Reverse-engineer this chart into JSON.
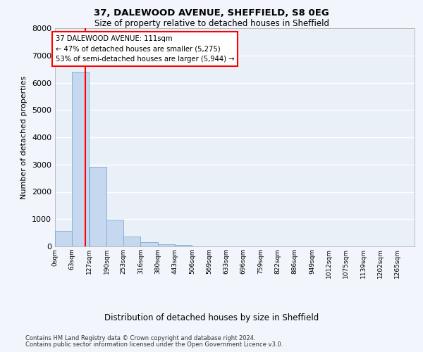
{
  "title1": "37, DALEWOOD AVENUE, SHEFFIELD, S8 0EG",
  "title2": "Size of property relative to detached houses in Sheffield",
  "xlabel": "Distribution of detached houses by size in Sheffield",
  "ylabel": "Number of detached properties",
  "annotation_line1": "37 DALEWOOD AVENUE: 111sqm",
  "annotation_line2": "← 47% of detached houses are smaller (5,275)",
  "annotation_line3": "53% of semi-detached houses are larger (5,944) →",
  "bar_values": [
    575,
    6400,
    2920,
    970,
    370,
    155,
    80,
    55,
    0,
    0,
    0,
    0,
    0,
    0,
    0,
    0,
    0,
    0,
    0,
    0
  ],
  "bin_edges": [
    0,
    63,
    127,
    190,
    253,
    316,
    380,
    443,
    506,
    569,
    633,
    696,
    759,
    822,
    886,
    949,
    1012,
    1075,
    1139,
    1202,
    1265
  ],
  "tick_labels": [
    "0sqm",
    "63sqm",
    "127sqm",
    "190sqm",
    "253sqm",
    "316sqm",
    "380sqm",
    "443sqm",
    "506sqm",
    "569sqm",
    "633sqm",
    "696sqm",
    "759sqm",
    "822sqm",
    "886sqm",
    "949sqm",
    "1012sqm",
    "1075sqm",
    "1139sqm",
    "1202sqm",
    "1265sqm"
  ],
  "bar_color": "#c5d8f0",
  "bar_edge_color": "#7aadd4",
  "red_line_x": 111,
  "ylim": [
    0,
    8000
  ],
  "yticks": [
    0,
    1000,
    2000,
    3000,
    4000,
    5000,
    6000,
    7000,
    8000
  ],
  "plot_bg_color": "#eaf0f8",
  "grid_color": "#ffffff",
  "footer_line1": "Contains HM Land Registry data © Crown copyright and database right 2024.",
  "footer_line2": "Contains public sector information licensed under the Open Government Licence v3.0."
}
